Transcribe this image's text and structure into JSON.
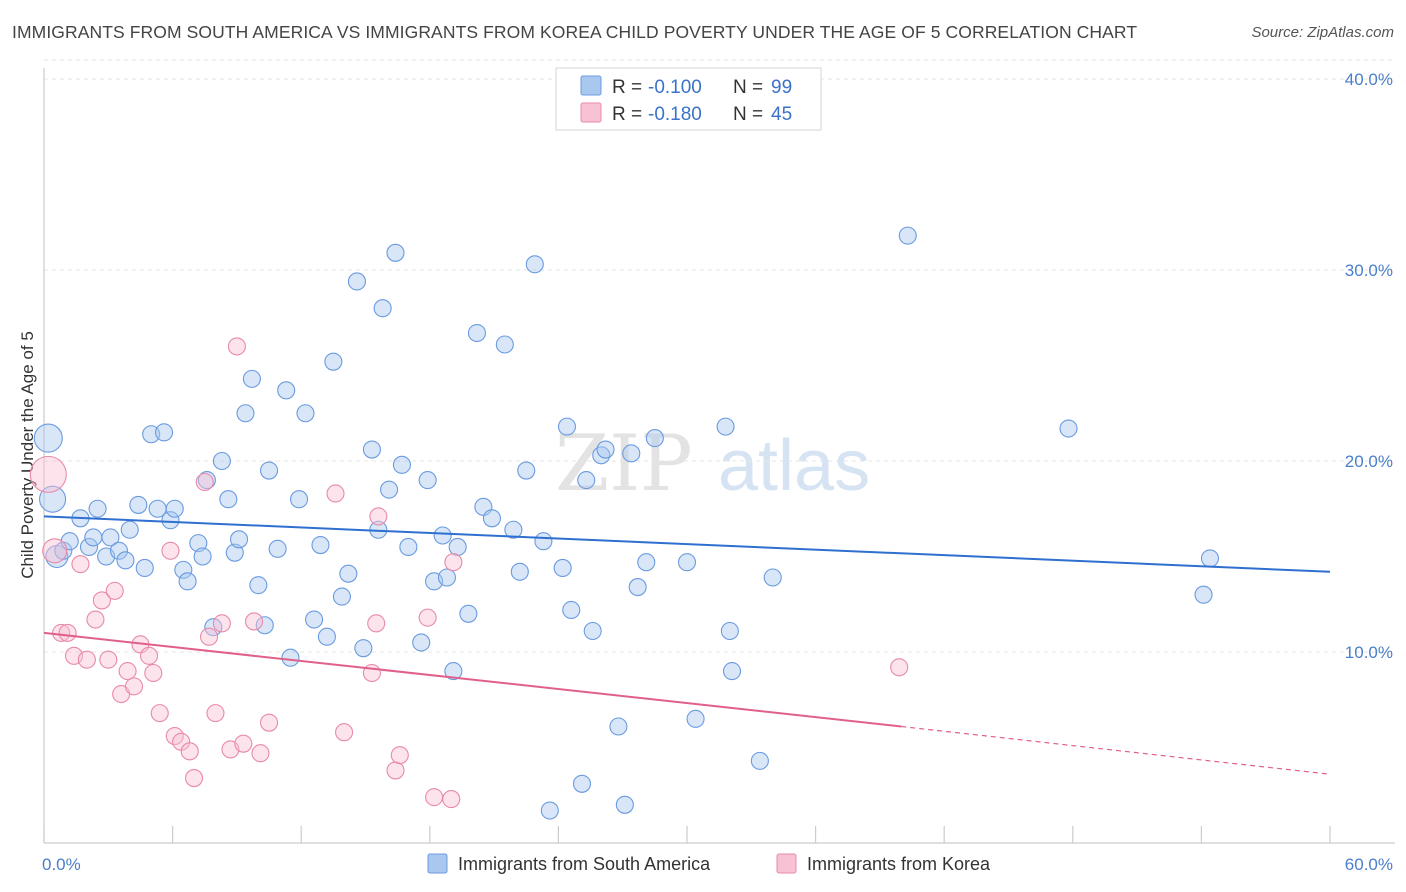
{
  "header": {
    "title": "IMMIGRANTS FROM SOUTH AMERICA VS IMMIGRANTS FROM KOREA CHILD POVERTY UNDER THE AGE OF 5 CORRELATION CHART",
    "source": "Source: ZipAtlas.com"
  },
  "watermark": {
    "part1": "ZIP",
    "part2": "atlas"
  },
  "stats": [
    {
      "r_label": "R =",
      "r_value": "-0.100",
      "n_label": "N =",
      "n_value": "99",
      "color": "#a9c8ef",
      "stroke": "#6a9be0"
    },
    {
      "r_label": "R =",
      "r_value": "-0.180",
      "n_label": "N =",
      "n_value": "45",
      "color": "#f8c2d4",
      "stroke": "#e88aa8"
    }
  ],
  "chart_data": {
    "type": "scatter",
    "ylabel": "Child Poverty Under the Age of 5",
    "xlim": [
      0,
      60
    ],
    "ylim": [
      0,
      42
    ],
    "x_tick_labels": [
      {
        "value": 0,
        "label": "0.0%"
      },
      {
        "value": 60,
        "label": "60.0%"
      }
    ],
    "y_tick_labels": [
      {
        "value": 10,
        "label": "10.0%"
      },
      {
        "value": 20,
        "label": "20.0%"
      },
      {
        "value": 30,
        "label": "30.0%"
      },
      {
        "value": 40,
        "label": "40.0%"
      }
    ],
    "grid": "horizontal dashed",
    "legend_position": "bottom-center",
    "series": [
      {
        "name": "Immigrants from South America",
        "color": "#a9c8ef",
        "stroke": "#6a9be0",
        "trend_color": "#2f6fcf",
        "trend": {
          "x0": 0,
          "y0": 17.1,
          "x1": 60,
          "y1": 14.2
        },
        "points": [
          [
            0.2,
            21.2
          ],
          [
            0.4,
            18.0
          ],
          [
            0.6,
            15.0
          ],
          [
            0.9,
            15.3
          ],
          [
            1.2,
            15.8
          ],
          [
            1.7,
            17.0
          ],
          [
            2.1,
            15.5
          ],
          [
            2.3,
            16.0
          ],
          [
            2.5,
            17.5
          ],
          [
            2.9,
            15.0
          ],
          [
            3.1,
            16.0
          ],
          [
            3.5,
            15.3
          ],
          [
            3.8,
            14.8
          ],
          [
            4.0,
            16.4
          ],
          [
            4.4,
            17.7
          ],
          [
            4.7,
            14.4
          ],
          [
            5.0,
            21.4
          ],
          [
            5.3,
            17.5
          ],
          [
            5.6,
            21.5
          ],
          [
            5.9,
            16.9
          ],
          [
            6.1,
            17.5
          ],
          [
            6.5,
            14.3
          ],
          [
            6.7,
            13.7
          ],
          [
            7.2,
            15.7
          ],
          [
            7.4,
            15.0
          ],
          [
            7.6,
            19.0
          ],
          [
            7.9,
            11.3
          ],
          [
            8.3,
            20.0
          ],
          [
            8.6,
            18.0
          ],
          [
            8.9,
            15.2
          ],
          [
            9.1,
            15.9
          ],
          [
            9.4,
            22.5
          ],
          [
            9.7,
            24.3
          ],
          [
            10.0,
            13.5
          ],
          [
            10.3,
            11.4
          ],
          [
            10.5,
            19.5
          ],
          [
            10.9,
            15.4
          ],
          [
            11.3,
            23.7
          ],
          [
            11.5,
            9.7
          ],
          [
            11.9,
            18.0
          ],
          [
            12.2,
            22.5
          ],
          [
            12.6,
            11.7
          ],
          [
            12.9,
            15.6
          ],
          [
            13.2,
            10.8
          ],
          [
            13.5,
            25.2
          ],
          [
            13.9,
            12.9
          ],
          [
            14.2,
            14.1
          ],
          [
            14.6,
            29.4
          ],
          [
            14.9,
            10.2
          ],
          [
            15.3,
            20.6
          ],
          [
            15.6,
            16.4
          ],
          [
            15.8,
            28.0
          ],
          [
            16.1,
            18.5
          ],
          [
            16.4,
            30.9
          ],
          [
            16.7,
            19.8
          ],
          [
            17.0,
            15.5
          ],
          [
            17.6,
            10.5
          ],
          [
            17.9,
            19.0
          ],
          [
            18.2,
            13.7
          ],
          [
            18.6,
            16.1
          ],
          [
            18.8,
            13.9
          ],
          [
            19.1,
            9.0
          ],
          [
            19.3,
            15.5
          ],
          [
            19.8,
            12.0
          ],
          [
            20.2,
            26.7
          ],
          [
            20.5,
            17.6
          ],
          [
            20.9,
            17.0
          ],
          [
            21.5,
            26.1
          ],
          [
            21.9,
            16.4
          ],
          [
            22.2,
            14.2
          ],
          [
            22.5,
            19.5
          ],
          [
            22.9,
            30.3
          ],
          [
            23.3,
            15.8
          ],
          [
            23.6,
            1.7
          ],
          [
            24.2,
            14.4
          ],
          [
            24.4,
            21.8
          ],
          [
            24.6,
            12.2
          ],
          [
            25.1,
            3.1
          ],
          [
            25.3,
            19.0
          ],
          [
            25.6,
            11.1
          ],
          [
            26.0,
            20.3
          ],
          [
            26.2,
            20.6
          ],
          [
            26.8,
            6.1
          ],
          [
            27.1,
            2.0
          ],
          [
            27.4,
            20.4
          ],
          [
            27.7,
            13.4
          ],
          [
            28.1,
            14.7
          ],
          [
            28.5,
            21.2
          ],
          [
            30.0,
            14.7
          ],
          [
            30.4,
            6.5
          ],
          [
            31.8,
            21.8
          ],
          [
            32.0,
            11.1
          ],
          [
            32.1,
            9.0
          ],
          [
            33.4,
            4.3
          ],
          [
            34.0,
            13.9
          ],
          [
            40.3,
            31.8
          ],
          [
            47.8,
            21.7
          ],
          [
            54.1,
            13.0
          ],
          [
            54.4,
            14.9
          ]
        ]
      },
      {
        "name": "Immigrants from Korea",
        "color": "#f8c2d4",
        "stroke": "#e88aa8",
        "trend_color": "#e0608a",
        "trend": {
          "x0": 0,
          "y0": 11.0,
          "x1": 40,
          "y1": 6.1
        },
        "trend_extension": {
          "x0": 40,
          "y0": 6.1,
          "x1": 60,
          "y1": 3.6
        },
        "points": [
          [
            0.2,
            19.3
          ],
          [
            0.5,
            15.3
          ],
          [
            0.8,
            11.0
          ],
          [
            1.1,
            11.0
          ],
          [
            1.4,
            9.8
          ],
          [
            1.7,
            14.6
          ],
          [
            2.0,
            9.6
          ],
          [
            2.4,
            11.7
          ],
          [
            2.7,
            12.7
          ],
          [
            3.0,
            9.6
          ],
          [
            3.3,
            13.2
          ],
          [
            3.6,
            7.8
          ],
          [
            3.9,
            9.0
          ],
          [
            4.2,
            8.2
          ],
          [
            4.5,
            10.4
          ],
          [
            4.9,
            9.8
          ],
          [
            5.1,
            8.9
          ],
          [
            5.4,
            6.8
          ],
          [
            5.9,
            15.3
          ],
          [
            6.1,
            5.6
          ],
          [
            6.4,
            5.3
          ],
          [
            6.8,
            4.8
          ],
          [
            7.0,
            3.4
          ],
          [
            7.5,
            18.9
          ],
          [
            7.7,
            10.8
          ],
          [
            8.0,
            6.8
          ],
          [
            8.3,
            11.5
          ],
          [
            8.7,
            4.9
          ],
          [
            9.0,
            26.0
          ],
          [
            9.3,
            5.2
          ],
          [
            9.8,
            11.6
          ],
          [
            10.1,
            4.7
          ],
          [
            10.5,
            6.3
          ],
          [
            13.6,
            18.3
          ],
          [
            14.0,
            5.8
          ],
          [
            15.6,
            17.1
          ],
          [
            15.5,
            11.5
          ],
          [
            15.3,
            8.9
          ],
          [
            16.4,
            3.8
          ],
          [
            16.6,
            4.6
          ],
          [
            17.9,
            11.8
          ],
          [
            18.2,
            2.4
          ],
          [
            19.0,
            2.3
          ],
          [
            19.1,
            14.7
          ],
          [
            39.9,
            9.2
          ]
        ]
      }
    ]
  }
}
